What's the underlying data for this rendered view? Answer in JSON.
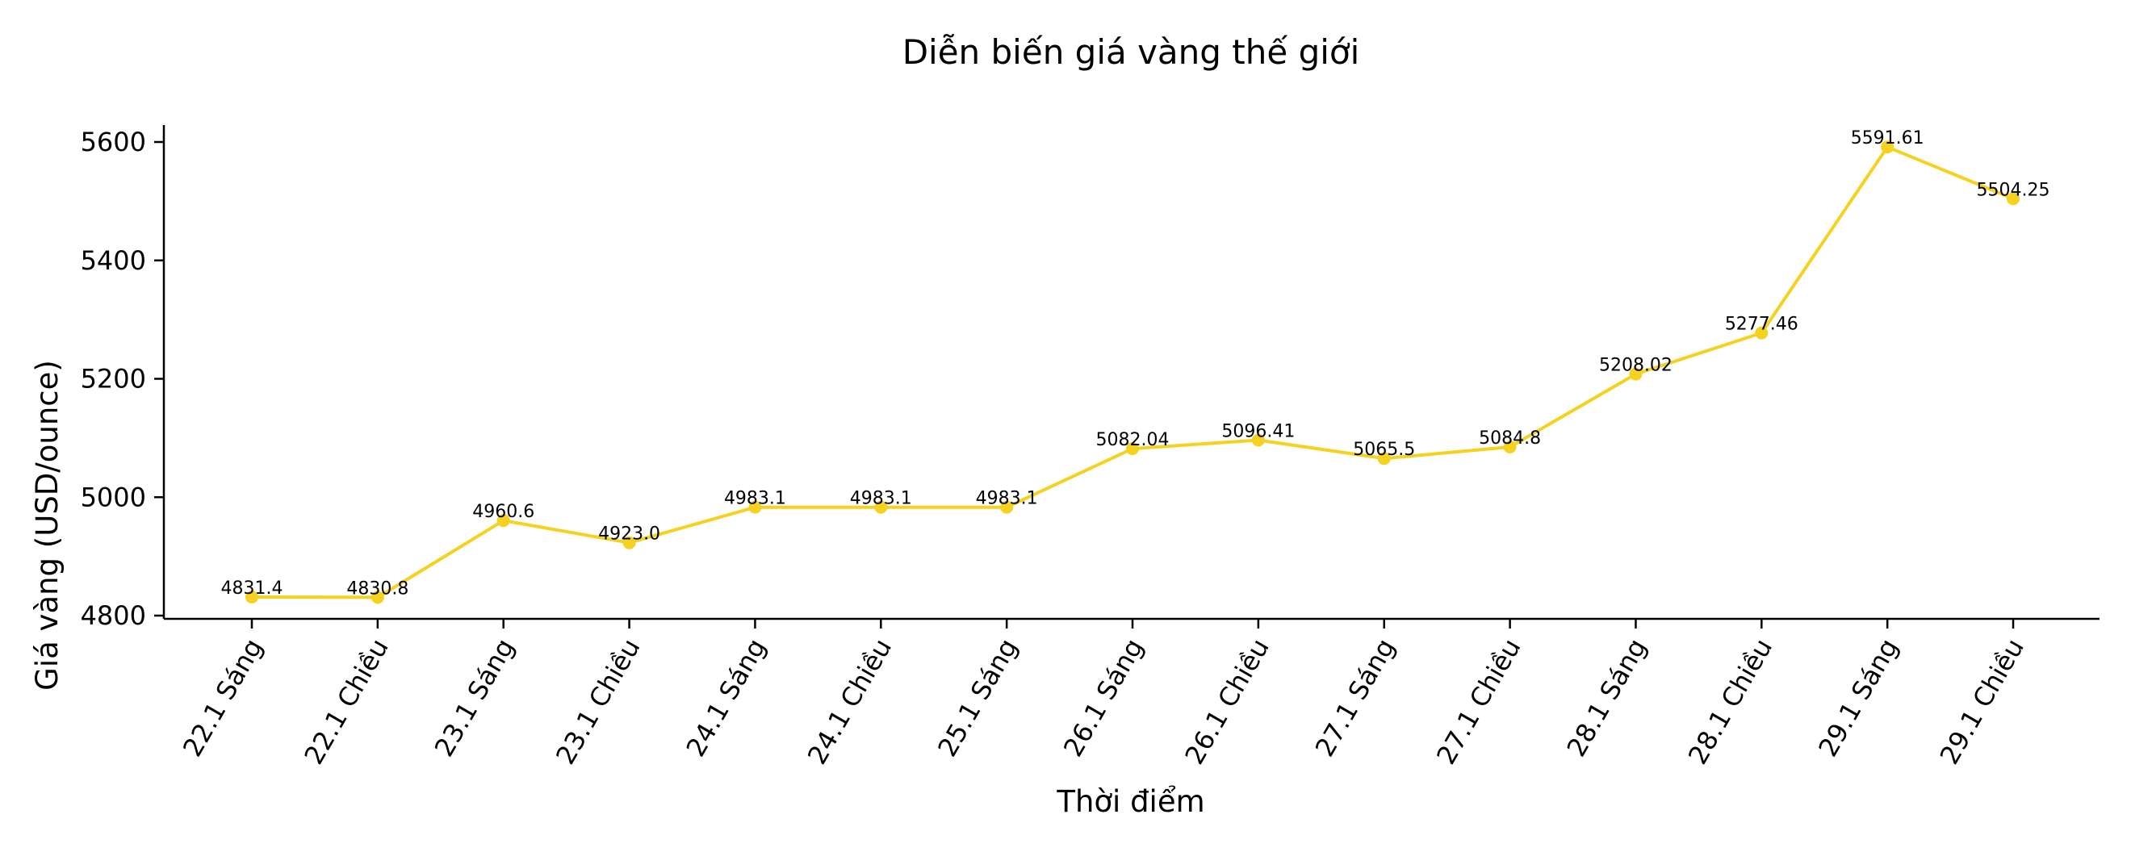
{
  "chart_data": {
    "type": "line",
    "title": "Diễn biến giá vàng thế giới",
    "xlabel": "Thời điểm",
    "ylabel": "Giá vàng (USD/ounce)",
    "categories": [
      "22.1 Sáng",
      "22.1 Chiều",
      "23.1 Sáng",
      "23.1 Chiều",
      "24.1 Sáng",
      "24.1 Chiều",
      "25.1 Sáng",
      "26.1 Sáng",
      "26.1 Chiều",
      "27.1 Sáng",
      "27.1 Chiều",
      "28.1 Sáng",
      "28.1 Chiều",
      "29.1 Sáng",
      "29.1 Chiều"
    ],
    "values": [
      4831.4,
      4830.8,
      4960.6,
      4923.0,
      4983.1,
      4983.1,
      4983.1,
      5082.04,
      5096.41,
      5065.5,
      5084.8,
      5208.02,
      5277.46,
      5591.61,
      5504.25
    ],
    "data_labels": [
      "4831.4",
      "4830.8",
      "4960.6",
      "4923.0",
      "4983.1",
      "4983.1",
      "4983.1",
      "5082.04",
      "5096.41",
      "5065.5",
      "5084.8",
      "5208.02",
      "5277.46",
      "5591.61",
      "5504.25"
    ],
    "ylim": [
      4800,
      5600
    ],
    "yticks": [
      4800,
      5000,
      5200,
      5400,
      5600
    ],
    "ytick_labels": [
      "4800",
      "5000",
      "5200",
      "5400",
      "5600"
    ],
    "grid": false,
    "colors": {
      "line": "#f4d21f",
      "axis": "#000000"
    }
  }
}
